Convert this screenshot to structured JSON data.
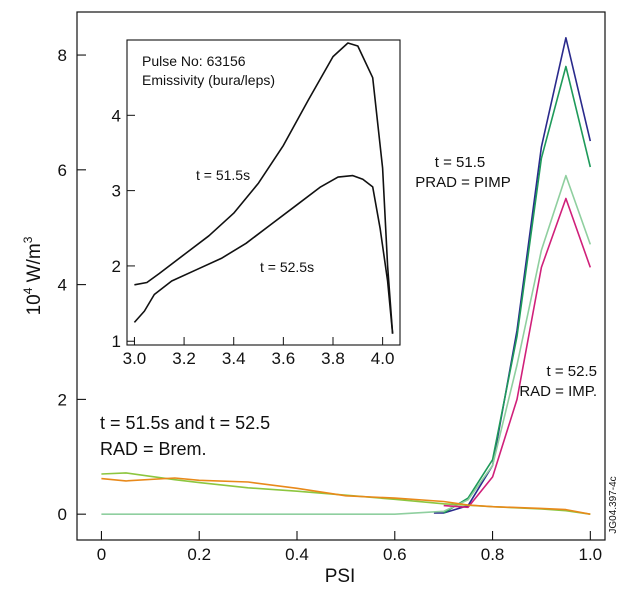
{
  "chart_data": [
    {
      "type": "line",
      "xlabel": "PSI",
      "ylabel_base": "10",
      "ylabel_sup": "4",
      "ylabel_rest": " W/m",
      "ylabel_sup2": "3",
      "xlim": [
        -0.05,
        1.03
      ],
      "ylim": [
        -0.45,
        8.75
      ],
      "xticks": [
        0,
        0.2,
        0.4,
        0.6,
        0.8,
        1.0
      ],
      "xtick_labels": [
        "0",
        "0.2",
        "0.4",
        "0.6",
        "0.8",
        "1.0"
      ],
      "yticks": [
        0,
        2,
        4,
        6,
        8
      ],
      "ytick_labels": [
        "0",
        "2",
        "4",
        "6",
        "8"
      ],
      "grid": false,
      "series": [
        {
          "color": "#2a2a8c",
          "x": [
            0.68,
            0.7,
            0.75,
            0.8,
            0.85,
            0.9,
            0.95,
            1.0
          ],
          "y": [
            0.02,
            0.02,
            0.15,
            0.85,
            3.2,
            6.4,
            8.3,
            6.5
          ]
        },
        {
          "color": "#1e9a5a",
          "x": [
            0.7,
            0.75,
            0.8,
            0.85,
            0.9,
            0.95,
            1.0
          ],
          "y": [
            0.02,
            0.28,
            0.95,
            3.1,
            6.2,
            7.8,
            6.05
          ]
        },
        {
          "color": "#8fcf9f",
          "x": [
            0,
            0.2,
            0.4,
            0.6,
            0.7,
            0.75,
            0.8,
            0.85,
            0.9,
            0.95,
            1.0
          ],
          "y": [
            0,
            0,
            0,
            0,
            0.05,
            0.25,
            0.85,
            2.6,
            4.6,
            5.9,
            4.7
          ]
        },
        {
          "color": "#d0207a",
          "x": [
            0.7,
            0.75,
            0.8,
            0.85,
            0.9,
            0.95,
            1.0
          ],
          "y": [
            0.15,
            0.12,
            0.65,
            2.0,
            4.3,
            5.5,
            4.3
          ]
        },
        {
          "color": "#8dc63f",
          "x": [
            0,
            0.05,
            0.1,
            0.15,
            0.2,
            0.3,
            0.4,
            0.5,
            0.6,
            0.7,
            0.8,
            0.9,
            0.95,
            1.0
          ],
          "y": [
            0.7,
            0.72,
            0.66,
            0.6,
            0.55,
            0.46,
            0.4,
            0.33,
            0.26,
            0.18,
            0.13,
            0.09,
            0.06,
            0.0
          ]
        },
        {
          "color": "#e8891a",
          "x": [
            0,
            0.05,
            0.15,
            0.2,
            0.3,
            0.4,
            0.5,
            0.6,
            0.7,
            0.75,
            0.8,
            0.9,
            0.95,
            1.0
          ],
          "y": [
            0.62,
            0.58,
            0.63,
            0.59,
            0.56,
            0.45,
            0.32,
            0.28,
            0.22,
            0.16,
            0.13,
            0.1,
            0.08,
            0.0
          ]
        }
      ],
      "annotations": {
        "t515_line1": "t = 51.5",
        "t515_line2": "PRAD = PIMP",
        "t525_line1": "t = 52.5",
        "t525_line2": "RAD = IMP.",
        "brem_line1": "t = 51.5s and t = 52.5",
        "brem_line2": "RAD = Brem."
      },
      "figure_id": "JG04.397-4c"
    },
    {
      "type": "line",
      "title_line1": "Pulse No: 63156",
      "title_line2": "Emissivity (bura/leps)",
      "xlim": [
        2.97,
        4.07
      ],
      "ylim": [
        0.95,
        5.0
      ],
      "xticks": [
        3.0,
        3.2,
        3.4,
        3.6,
        3.8,
        4.0
      ],
      "xtick_labels": [
        "3.0",
        "3.2",
        "3.4",
        "3.6",
        "3.8",
        "4.0"
      ],
      "yticks": [
        1,
        2,
        3,
        4
      ],
      "ytick_labels": [
        "1",
        "2",
        "3",
        "4"
      ],
      "series": [
        {
          "name": "t = 51.5s",
          "color": "#111111",
          "x": [
            3.0,
            3.05,
            3.1,
            3.2,
            3.3,
            3.4,
            3.5,
            3.6,
            3.7,
            3.8,
            3.86,
            3.9,
            3.96,
            4.0,
            4.02,
            4.04
          ],
          "y": [
            1.75,
            1.78,
            1.9,
            2.15,
            2.4,
            2.7,
            3.1,
            3.6,
            4.2,
            4.78,
            4.96,
            4.92,
            4.5,
            3.3,
            2.0,
            1.1
          ]
        },
        {
          "name": "t = 52.5s",
          "color": "#111111",
          "x": [
            3.0,
            3.04,
            3.08,
            3.15,
            3.25,
            3.35,
            3.45,
            3.55,
            3.65,
            3.75,
            3.82,
            3.88,
            3.92,
            3.96,
            3.99,
            4.02,
            4.04
          ],
          "y": [
            1.25,
            1.4,
            1.62,
            1.8,
            1.95,
            2.1,
            2.3,
            2.55,
            2.8,
            3.05,
            3.18,
            3.2,
            3.15,
            3.05,
            2.5,
            1.8,
            1.1
          ]
        }
      ]
    }
  ]
}
